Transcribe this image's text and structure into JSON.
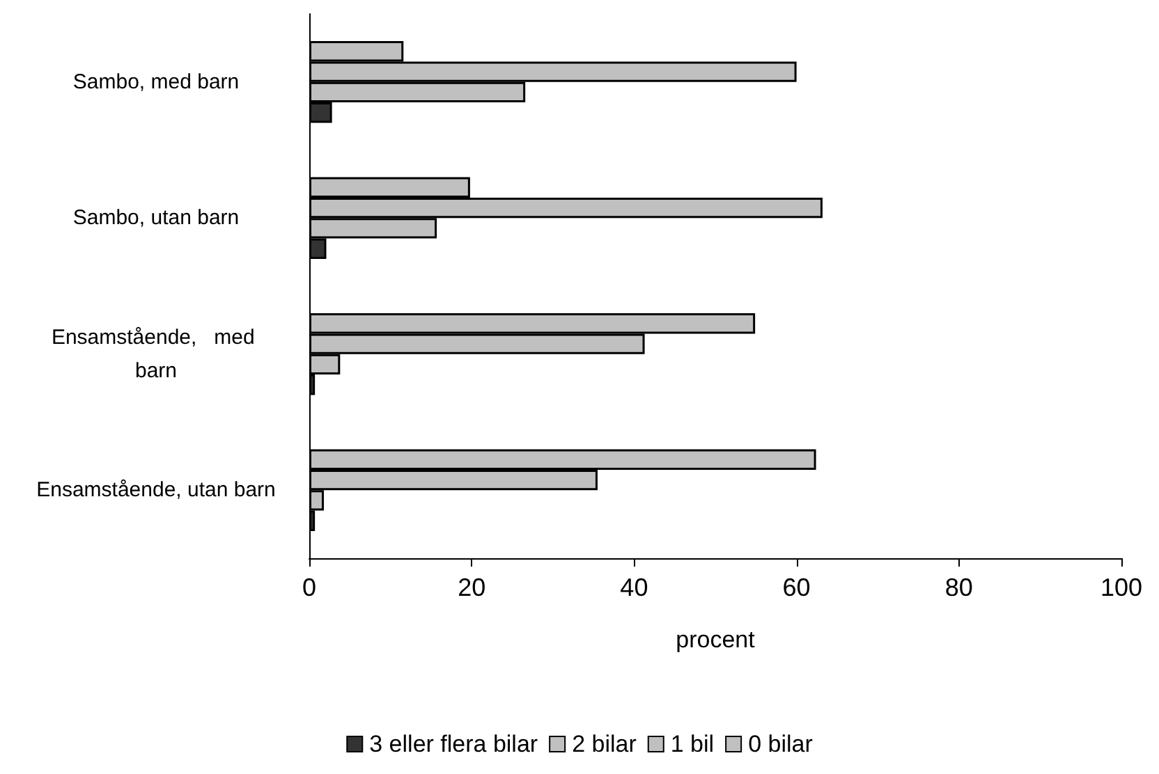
{
  "chart_data": {
    "type": "bar",
    "orientation": "horizontal",
    "xlabel": "procent",
    "categories": [
      "Sambo, med barn",
      "Sambo, utan barn",
      "Ensamstående,   med barn",
      "Ensamstående, utan barn"
    ],
    "series": [
      {
        "name": "3 eller flera bilar",
        "color": "#333333",
        "values": [
          2.8,
          2.1,
          0.7,
          0.7
        ]
      },
      {
        "name": "2 bilar",
        "color": "#c0c0c0",
        "values": [
          26.6,
          15.7,
          3.8,
          1.8
        ]
      },
      {
        "name": "1 bil",
        "color": "#c0c0c0",
        "values": [
          60.0,
          63.2,
          41.3,
          35.5
        ]
      },
      {
        "name": "0 bilar",
        "color": "#c0c0c0",
        "values": [
          11.6,
          19.8,
          54.9,
          62.4
        ]
      }
    ],
    "xlim": [
      0,
      100
    ],
    "xticks": [
      0,
      20,
      40,
      60,
      80,
      100
    ],
    "grid": false,
    "legend": "bottom"
  }
}
